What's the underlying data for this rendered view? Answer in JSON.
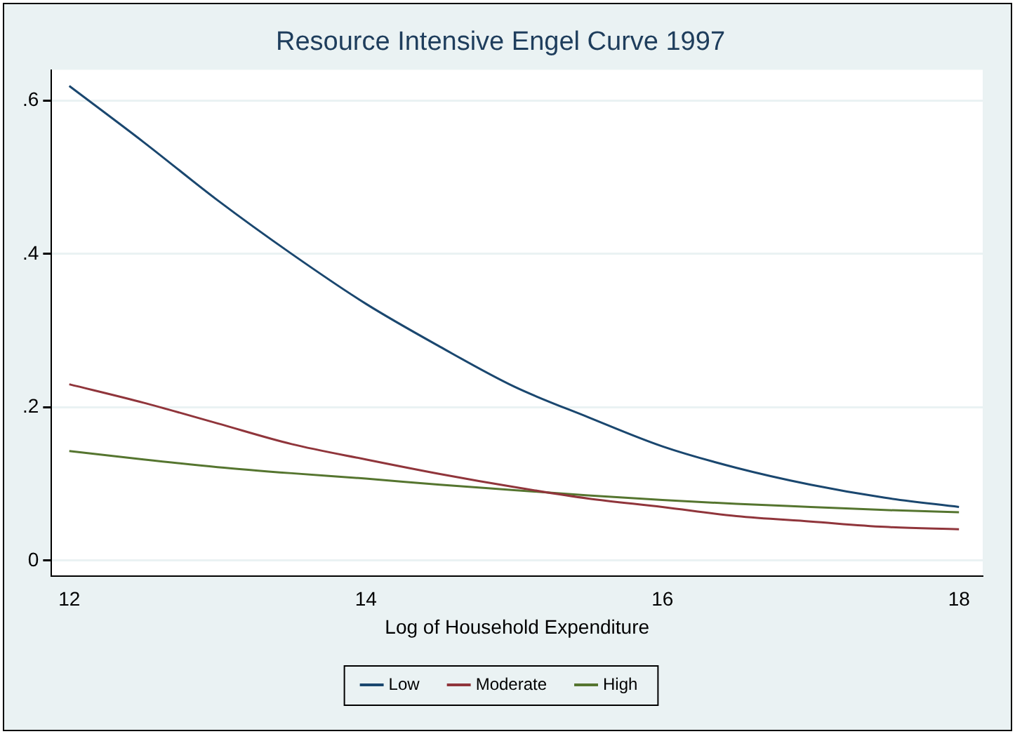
{
  "chart_data": {
    "type": "line",
    "title": "Resource Intensive Engel Curve 1997",
    "xlabel": "Log of Household Expenditure",
    "x": [
      12,
      12.5,
      13,
      13.5,
      14,
      14.5,
      15,
      15.5,
      16,
      16.5,
      17,
      17.5,
      18
    ],
    "series": [
      {
        "name": "Low",
        "color": "#1a476f",
        "values": [
          0.619,
          0.546,
          0.47,
          0.4,
          0.335,
          0.279,
          0.227,
          0.187,
          0.149,
          0.121,
          0.099,
          0.082,
          0.07
        ]
      },
      {
        "name": "Moderate",
        "color": "#90353b",
        "values": [
          0.23,
          0.206,
          0.179,
          0.152,
          0.132,
          0.113,
          0.096,
          0.081,
          0.07,
          0.058,
          0.051,
          0.044,
          0.041
        ]
      },
      {
        "name": "High",
        "color": "#55752f",
        "values": [
          0.143,
          0.132,
          0.122,
          0.114,
          0.107,
          0.099,
          0.092,
          0.085,
          0.079,
          0.074,
          0.07,
          0.066,
          0.063
        ]
      }
    ],
    "xlim": [
      11.88,
      18.16
    ],
    "xticks": [
      12,
      14,
      16,
      18
    ],
    "ylim": [
      -0.02,
      0.64
    ],
    "yticks": [
      {
        "value": 0,
        "label": "0"
      },
      {
        "value": 0.2,
        "label": ".2"
      },
      {
        "value": 0.4,
        "label": ".4"
      },
      {
        "value": 0.6,
        "label": ".6"
      }
    ],
    "grid": "y",
    "legend": "bottom",
    "marker": "none",
    "line_style": "solid"
  }
}
